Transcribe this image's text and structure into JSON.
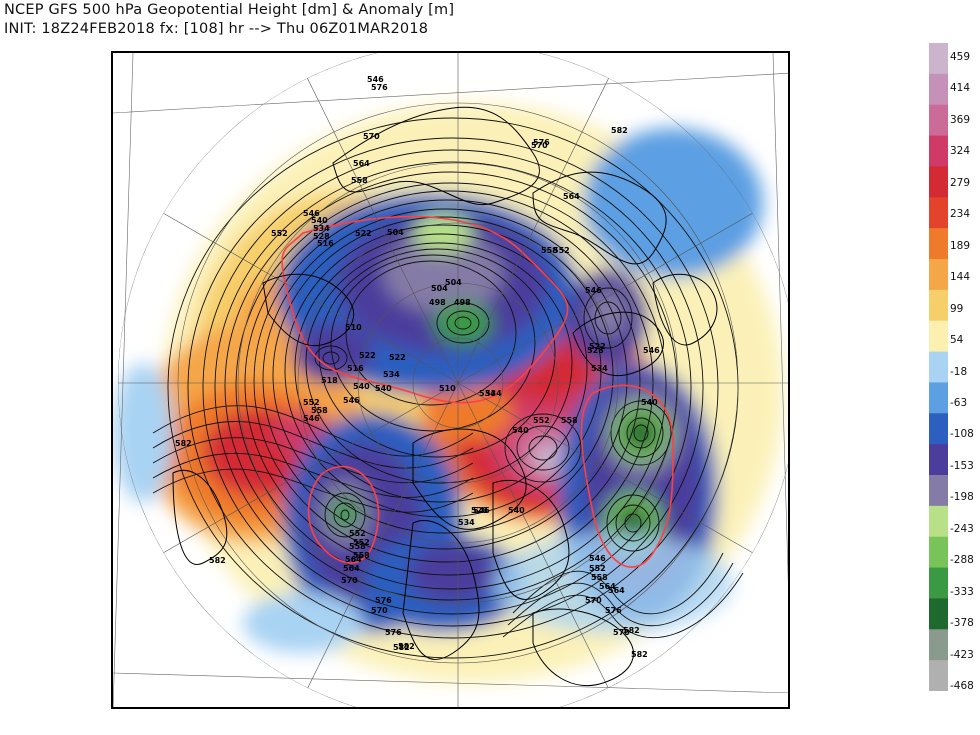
{
  "title": {
    "line1": "NCEP GFS 500 hPa Geopotential Height [dm] & Anomaly [m]",
    "line2": "INIT: 18Z24FEB2018 fx: [108] hr --> Thu 06Z01MAR2018"
  },
  "colorbar": {
    "labels": [
      "459",
      "414",
      "369",
      "324",
      "279",
      "234",
      "189",
      "144",
      "99",
      "54",
      "-18",
      "-63",
      "-108",
      "-153",
      "-198",
      "-243",
      "-288",
      "-333",
      "-378",
      "-423",
      "-468"
    ],
    "colors": [
      "#cbb4cc",
      "#c691b8",
      "#cc6a98",
      "#cf3a66",
      "#d42a34",
      "#e3432a",
      "#ef7a2c",
      "#f5a648",
      "#f7cf6a",
      "#fbf0b0",
      "#a9d3f3",
      "#5c9fe2",
      "#2c5fbf",
      "#4c3d9c",
      "#847ca6",
      "#b8e088",
      "#78c45a",
      "#3a9a44",
      "#1e6a2e",
      "#8a9a8c",
      "#b0b0b0"
    ]
  },
  "contour_labels": [
    "576",
    "570",
    "564",
    "558",
    "552",
    "546",
    "540",
    "534",
    "528",
    "522",
    "516",
    "504",
    "498",
    "510",
    "518",
    "522",
    "534",
    "540",
    "546",
    "558",
    "552",
    "546",
    "534",
    "510",
    "498",
    "504",
    "504",
    "516",
    "522",
    "528",
    "534",
    "540",
    "546",
    "552",
    "558",
    "564",
    "570",
    "576",
    "582",
    "582",
    "582",
    "582",
    "582",
    "546",
    "552",
    "558",
    "564",
    "570",
    "576",
    "582",
    "576",
    "570",
    "564",
    "558",
    "552",
    "546",
    "540",
    "534",
    "528",
    "522",
    "534",
    "540",
    "546",
    "552",
    "558",
    "564",
    "570",
    "576",
    "582",
    "540",
    "546",
    "552",
    "558",
    "564",
    "570"
  ]
}
